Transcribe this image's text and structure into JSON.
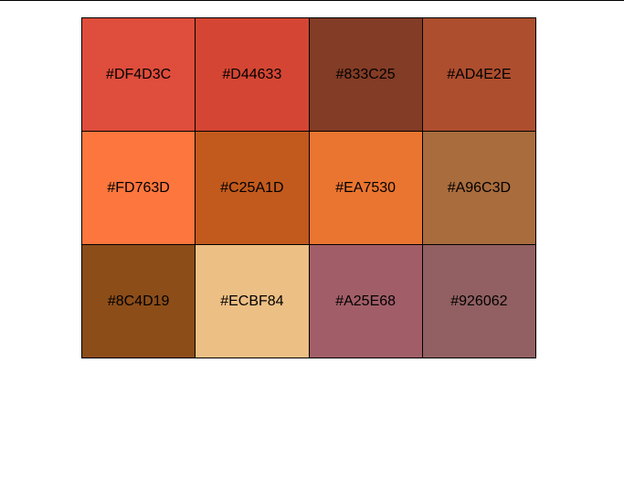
{
  "swatches": [
    {
      "hex": "#DF4D3C",
      "color": "#DF4D3C"
    },
    {
      "hex": "#D44633",
      "color": "#D44633"
    },
    {
      "hex": "#833C25",
      "color": "#833C25"
    },
    {
      "hex": "#AD4E2E",
      "color": "#AD4E2E"
    },
    {
      "hex": "#FD763D",
      "color": "#FD763D"
    },
    {
      "hex": "#C25A1D",
      "color": "#C25A1D"
    },
    {
      "hex": "#EA7530",
      "color": "#EA7530"
    },
    {
      "hex": "#A96C3D",
      "color": "#A96C3D"
    },
    {
      "hex": "#8C4D19",
      "color": "#8C4D19"
    },
    {
      "hex": "#ECBF84",
      "color": "#ECBF84"
    },
    {
      "hex": "#A25E68",
      "color": "#A25E68"
    },
    {
      "hex": "#926062",
      "color": "#926062"
    }
  ]
}
